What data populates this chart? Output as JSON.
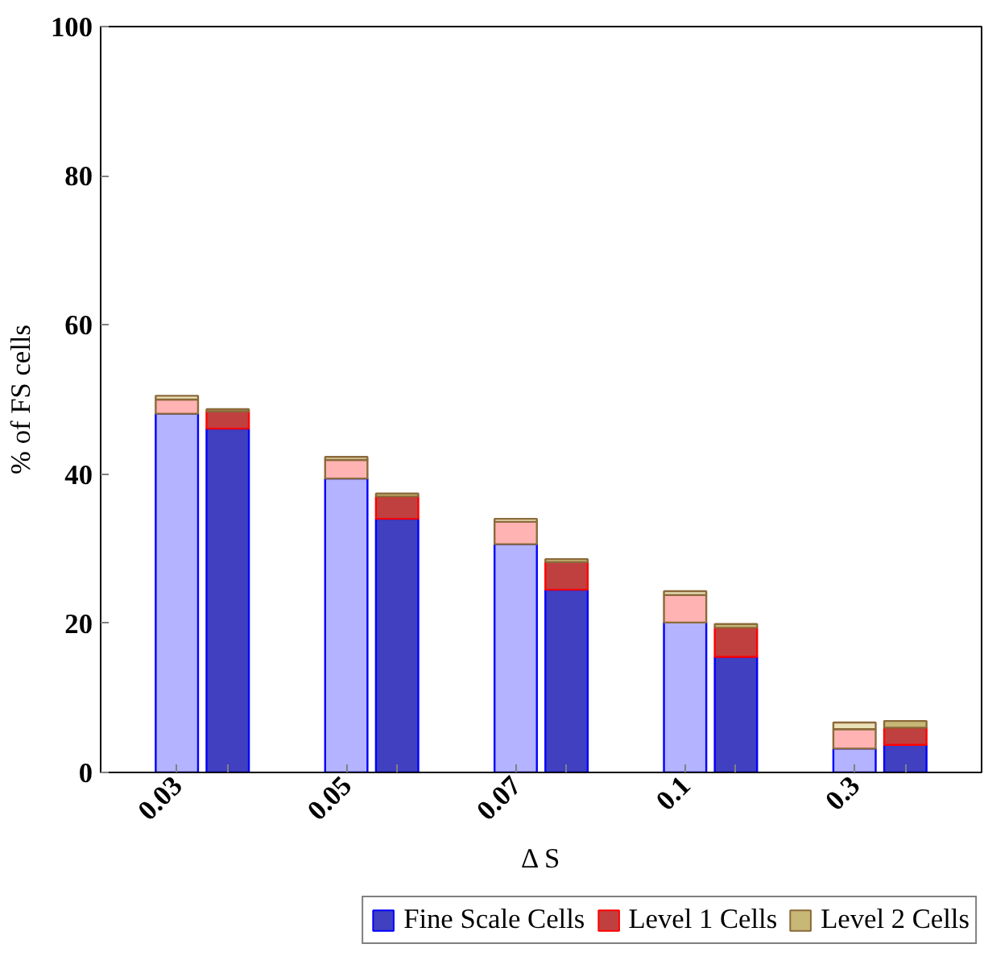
{
  "chart_data": {
    "type": "bar",
    "stacked": true,
    "xlabel": "Δ S",
    "ylabel": "% of FS cells",
    "categories": [
      "0.03",
      null,
      "0.05",
      null,
      "0.07",
      null,
      "0.1",
      null,
      "0.3",
      null
    ],
    "ylim": [
      0,
      100
    ],
    "yticks": [
      0,
      20,
      40,
      60,
      80,
      100
    ],
    "legend": "bottom",
    "series": [
      {
        "name": "Fine Scale Cells",
        "color": "#4040c0",
        "colors": [
          "#b3b3ff",
          "#4040c0",
          "#b3b3ff",
          "#4040c0",
          "#b3b3ff",
          "#4040c0",
          "#b3b3ff",
          "#4040c0",
          "#b3b3ff",
          "#4040c0"
        ],
        "values": [
          48.1,
          46.1,
          39.4,
          34.0,
          30.6,
          24.5,
          20.1,
          15.5,
          3.2,
          3.7
        ]
      },
      {
        "name": "Level 1 Cells",
        "color": "#c04040",
        "colors": [
          "#ffb3b3",
          "#c04040",
          "#ffb3b3",
          "#c04040",
          "#ffb3b3",
          "#c04040",
          "#ffb3b3",
          "#c04040",
          "#ffb3b3",
          "#c04040"
        ],
        "values": [
          1.9,
          2.3,
          2.5,
          3.0,
          3.0,
          3.7,
          3.7,
          3.9,
          2.6,
          2.3
        ]
      },
      {
        "name": "Level 2 Cells",
        "color": "#c8b878",
        "colors": [
          "#ebe1b8",
          "#c8b878",
          "#ebe1b8",
          "#c8b878",
          "#ebe1b8",
          "#c8b878",
          "#ebe1b8",
          "#c8b878",
          "#ebe1b8",
          "#c8b878"
        ],
        "values": [
          0.5,
          0.3,
          0.4,
          0.4,
          0.4,
          0.4,
          0.5,
          0.5,
          0.9,
          0.9
        ]
      }
    ]
  }
}
